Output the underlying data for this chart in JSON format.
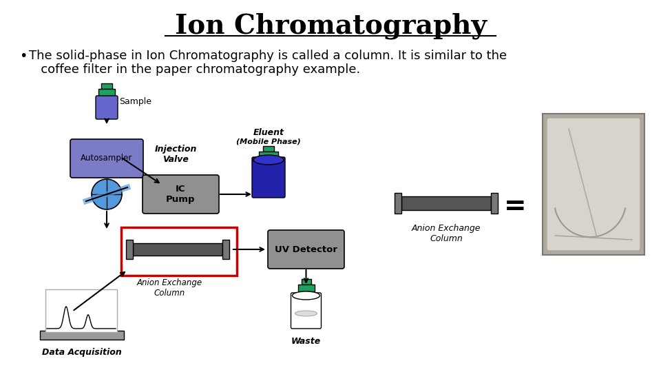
{
  "title": "Ion Chromatography",
  "bullet_line1": "The solid-phase in Ion Chromatography is called a column. It is similar to the",
  "bullet_line2": "   coffee filter in the paper chromatography example.",
  "bg_color": "#ffffff",
  "title_color": "#000000",
  "title_fontsize": 28,
  "body_fontsize": 13,
  "autosampler_color": "#7B7BC8",
  "pump_color": "#909090",
  "detector_color": "#909090",
  "eluent_color": "#2222AA",
  "column_color": "#555555",
  "teal_color": "#20A060",
  "arrow_color": "#000000",
  "red_box_color": "#CC0000",
  "sample_bottle_body": "#6666CC",
  "sample_bottle_cap": "#20A060",
  "cap_color": "#777777"
}
